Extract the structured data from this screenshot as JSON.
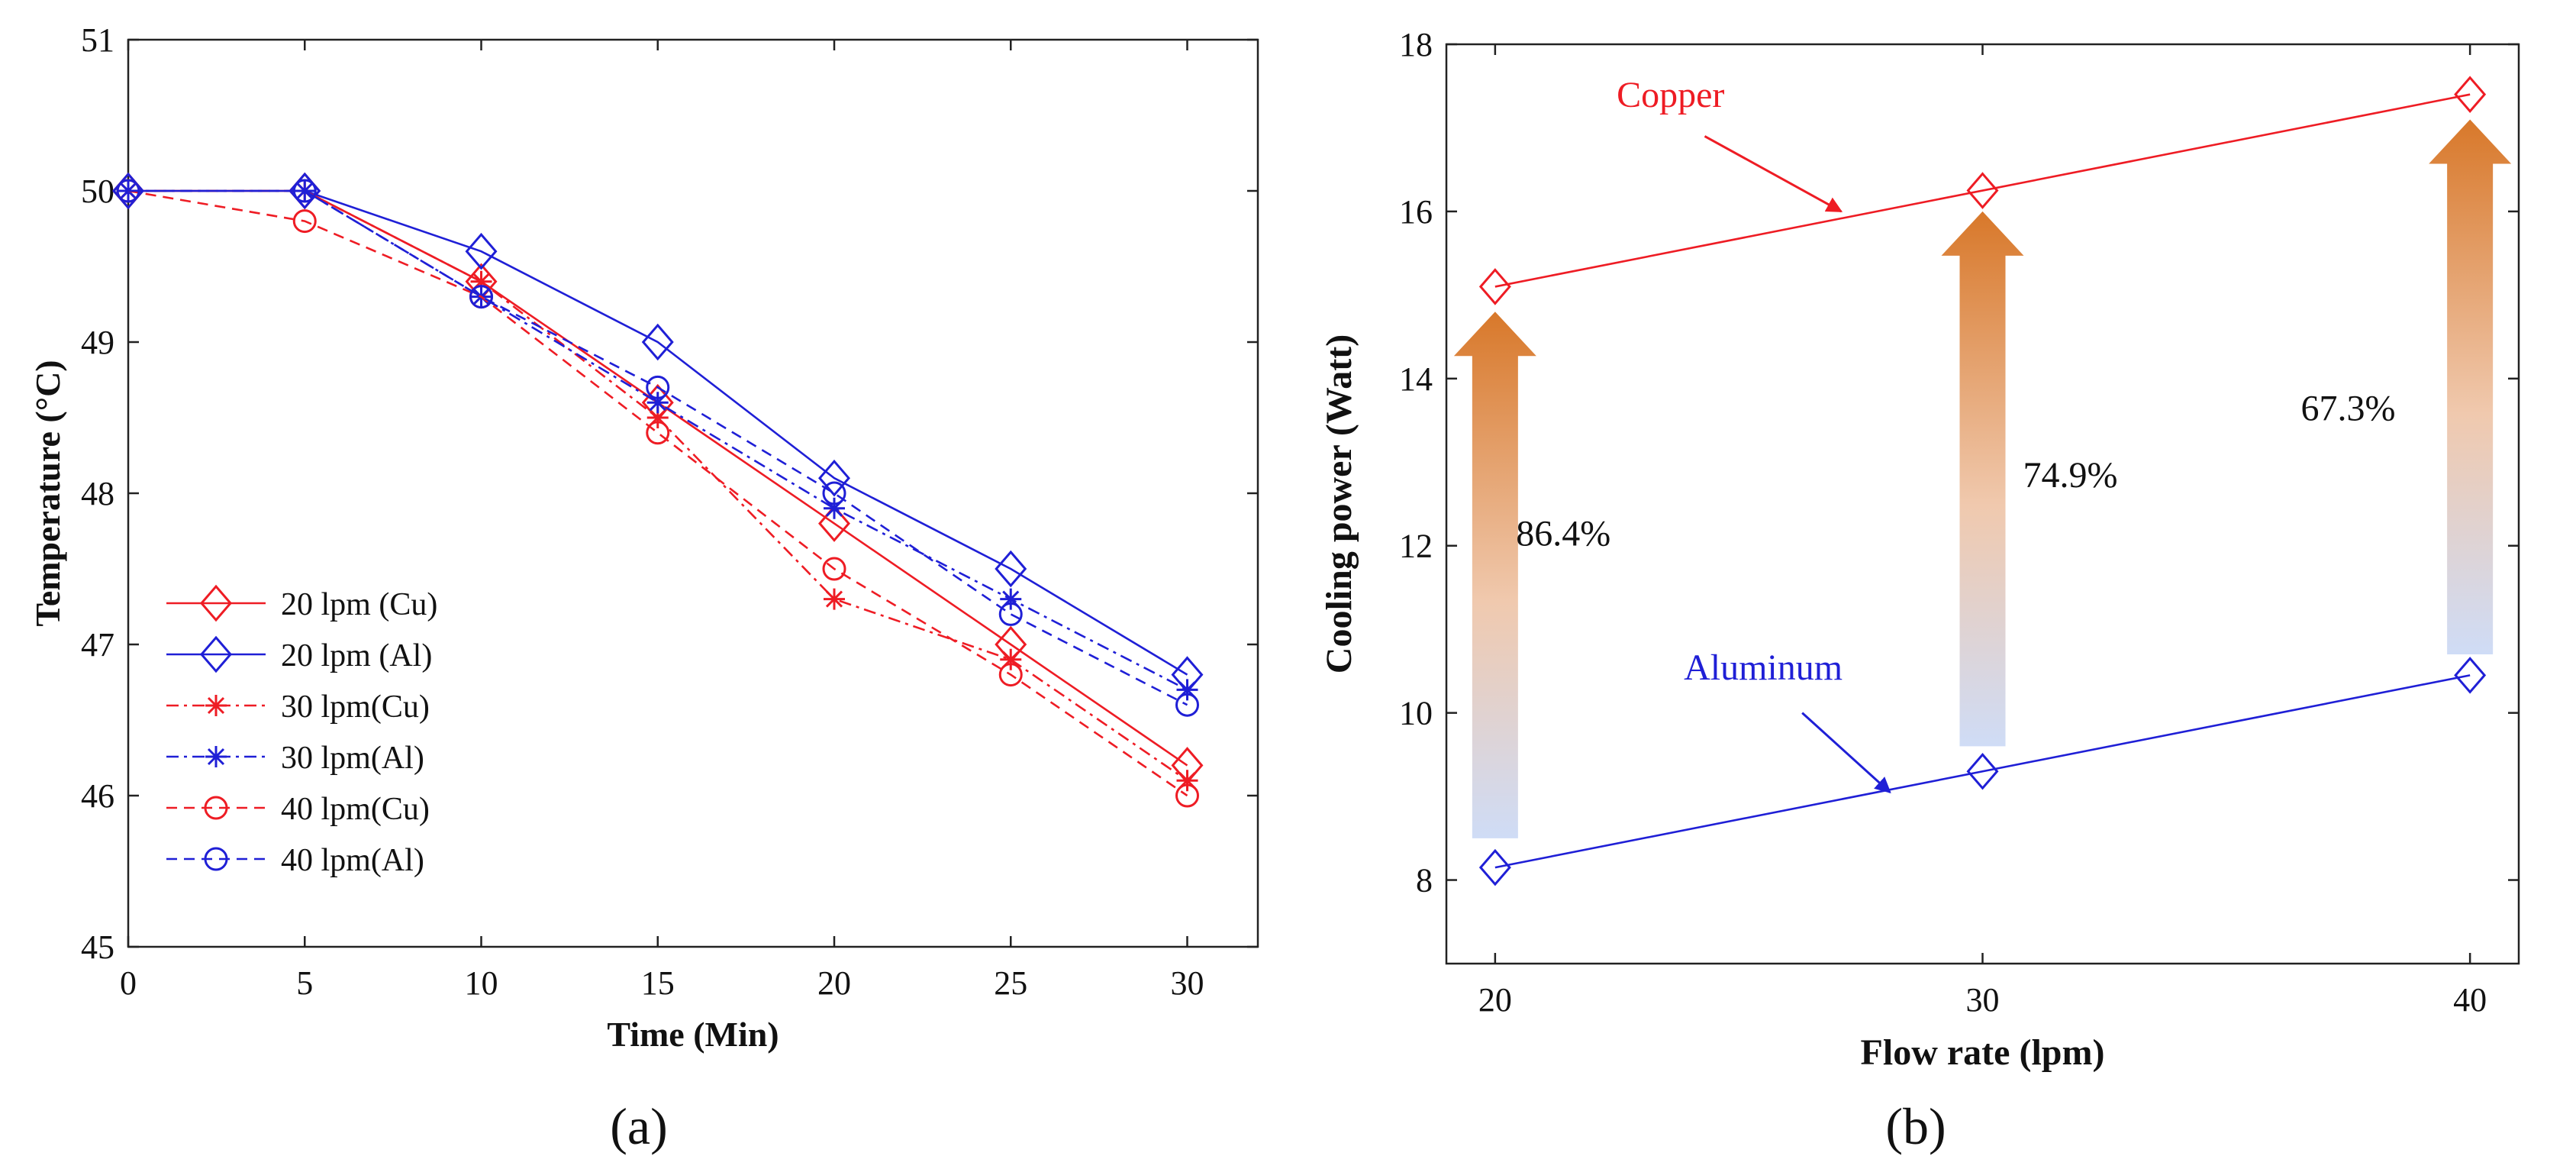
{
  "panel_labels": [
    "(a)",
    "(b)"
  ],
  "colors": {
    "red": "#ee1c24",
    "blue": "#1f1fd6",
    "axis": "#222222"
  },
  "chart_data": [
    {
      "id": "a",
      "type": "line",
      "title": "",
      "xlabel": "Time (Min)",
      "ylabel": "Temperature (°C)",
      "xlim": [
        0,
        32
      ],
      "ylim": [
        45,
        51
      ],
      "xticks": [
        0,
        5,
        10,
        15,
        20,
        25,
        30
      ],
      "yticks": [
        45,
        46,
        47,
        48,
        49,
        50,
        51
      ],
      "x": [
        0,
        5,
        10,
        15,
        20,
        25,
        30
      ],
      "legend_position": "lower-left",
      "series": [
        {
          "name": "20 lpm (Cu)",
          "color": "red",
          "dash": "solid",
          "marker": "diamond",
          "values": [
            50,
            50,
            49.4,
            48.6,
            47.8,
            47.0,
            46.2
          ]
        },
        {
          "name": "20 lpm (Al)",
          "color": "blue",
          "dash": "solid",
          "marker": "diamond",
          "values": [
            50,
            50,
            49.6,
            49.0,
            48.1,
            47.5,
            46.8
          ]
        },
        {
          "name": "30 lpm(Cu)",
          "color": "red",
          "dash": "dashdot",
          "marker": "star",
          "values": [
            50,
            50,
            49.4,
            48.5,
            47.3,
            46.9,
            46.1
          ]
        },
        {
          "name": "30 lpm(Al)",
          "color": "blue",
          "dash": "dashdot",
          "marker": "star",
          "values": [
            50,
            50,
            49.3,
            48.6,
            47.9,
            47.3,
            46.7
          ]
        },
        {
          "name": "40 lpm(Cu)",
          "color": "red",
          "dash": "dashed",
          "marker": "circle",
          "values": [
            50,
            49.8,
            49.3,
            48.4,
            47.5,
            46.8,
            46.0
          ]
        },
        {
          "name": "40 lpm(Al)",
          "color": "blue",
          "dash": "dashed",
          "marker": "circle",
          "values": [
            50,
            50,
            49.3,
            48.7,
            48.0,
            47.2,
            46.6
          ]
        }
      ]
    },
    {
      "id": "b",
      "type": "line",
      "title": "",
      "xlabel": "Flow rate (lpm)",
      "ylabel": "Cooling power (Watt)",
      "xlim": [
        19,
        41
      ],
      "ylim": [
        7,
        18
      ],
      "xticks": [
        20,
        30,
        40
      ],
      "yticks": [
        8,
        10,
        12,
        14,
        16,
        18
      ],
      "x": [
        20,
        30,
        40
      ],
      "series": [
        {
          "name": "Copper",
          "color": "red",
          "dash": "solid",
          "marker": "diamond",
          "values": [
            15.1,
            16.25,
            17.4
          ]
        },
        {
          "name": "Aluminum",
          "color": "blue",
          "dash": "solid",
          "marker": "diamond",
          "values": [
            8.15,
            9.3,
            10.45
          ]
        }
      ],
      "annotations": [
        {
          "text": "Copper",
          "color": "red",
          "text_at": [
            23.6,
            17.25
          ],
          "arrow_from": [
            24.3,
            16.9
          ],
          "arrow_to": [
            27.1,
            16.0
          ]
        },
        {
          "text": "Aluminum",
          "color": "blue",
          "text_at": [
            25.5,
            10.4
          ],
          "arrow_from": [
            26.3,
            10.0
          ],
          "arrow_to": [
            28.1,
            9.05
          ]
        }
      ],
      "improvements": [
        {
          "x": 20,
          "from": 8.5,
          "to": 14.8,
          "label": "86.4%",
          "label_at": [
            21.4,
            12.0
          ]
        },
        {
          "x": 30,
          "from": 9.6,
          "to": 16.0,
          "label": "74.9%",
          "label_at": [
            31.8,
            12.7
          ]
        },
        {
          "x": 40,
          "from": 10.7,
          "to": 17.1,
          "label": "67.3%",
          "label_at": [
            37.5,
            13.5
          ]
        }
      ]
    }
  ]
}
